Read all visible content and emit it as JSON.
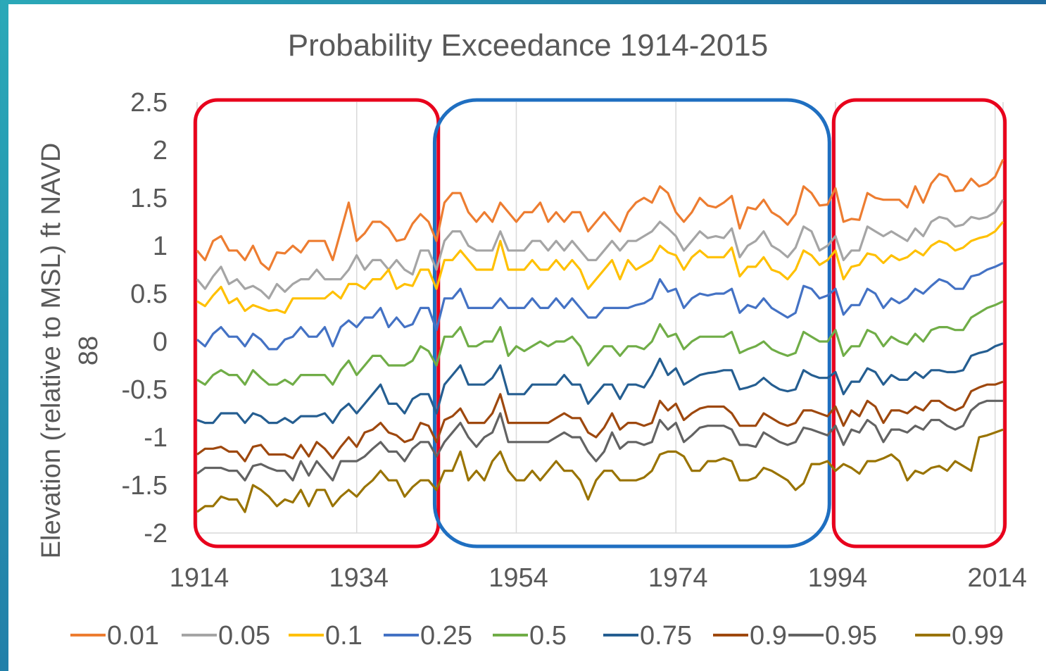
{
  "chart_data": {
    "type": "line",
    "title": "Probability Exceedance 1914-2015",
    "ylabel": "Elevation (relative to MSL) ft NAVD 88",
    "xlabel": "",
    "xlim": [
      1914,
      2015
    ],
    "ylim": [
      -2,
      2.5
    ],
    "xticks": [
      "1914",
      "1934",
      "1954",
      "1974",
      "1994",
      "2014"
    ],
    "yticks": [
      "2.5",
      "2",
      "1.5",
      "1",
      "0.5",
      "0",
      "-0.5",
      "-1",
      "-1.5",
      "-2"
    ],
    "grid": "vertical",
    "legend": "bottom",
    "x": [
      1914,
      1915,
      1916,
      1917,
      1918,
      1919,
      1920,
      1921,
      1922,
      1923,
      1924,
      1925,
      1926,
      1927,
      1928,
      1929,
      1930,
      1931,
      1932,
      1933,
      1934,
      1935,
      1936,
      1937,
      1938,
      1939,
      1940,
      1941,
      1942,
      1943,
      1944,
      1945,
      1946,
      1947,
      1948,
      1949,
      1950,
      1951,
      1952,
      1953,
      1954,
      1955,
      1956,
      1957,
      1958,
      1959,
      1960,
      1961,
      1962,
      1963,
      1964,
      1965,
      1966,
      1967,
      1968,
      1969,
      1970,
      1971,
      1972,
      1973,
      1974,
      1975,
      1976,
      1977,
      1978,
      1979,
      1980,
      1981,
      1982,
      1983,
      1984,
      1985,
      1986,
      1987,
      1988,
      1989,
      1990,
      1991,
      1992,
      1993,
      1994,
      1995,
      1996,
      1997,
      1998,
      1999,
      2000,
      2001,
      2002,
      2003,
      2004,
      2005,
      2006,
      2007,
      2008,
      2009,
      2010,
      2011,
      2012,
      2013,
      2014,
      2015
    ],
    "series": [
      {
        "name": "0.01",
        "color": "#ed7d31",
        "values": [
          0.95,
          0.85,
          1.05,
          1.1,
          0.95,
          0.95,
          0.85,
          1.0,
          0.82,
          0.75,
          0.93,
          0.92,
          1.0,
          0.93,
          1.05,
          1.05,
          1.05,
          0.85,
          1.15,
          1.45,
          1.05,
          1.13,
          1.25,
          1.25,
          1.18,
          1.05,
          1.07,
          1.23,
          1.33,
          1.25,
          1.05,
          1.45,
          1.55,
          1.55,
          1.35,
          1.25,
          1.35,
          1.25,
          1.45,
          1.35,
          1.25,
          1.35,
          1.35,
          1.45,
          1.25,
          1.35,
          1.25,
          1.35,
          1.35,
          1.15,
          1.25,
          1.35,
          1.25,
          1.15,
          1.35,
          1.45,
          1.5,
          1.45,
          1.62,
          1.55,
          1.35,
          1.25,
          1.35,
          1.5,
          1.42,
          1.4,
          1.45,
          1.52,
          1.18,
          1.4,
          1.38,
          1.48,
          1.35,
          1.3,
          1.22,
          1.33,
          1.62,
          1.55,
          1.42,
          1.43,
          1.6,
          1.25,
          1.28,
          1.27,
          1.55,
          1.5,
          1.48,
          1.48,
          1.48,
          1.4,
          1.62,
          1.45,
          1.65,
          1.75,
          1.72,
          1.57,
          1.58,
          1.7,
          1.62,
          1.65,
          1.72,
          1.9
        ]
      },
      {
        "name": "0.05",
        "color": "#a5a5a5",
        "values": [
          0.65,
          0.55,
          0.68,
          0.78,
          0.6,
          0.65,
          0.55,
          0.58,
          0.53,
          0.45,
          0.6,
          0.52,
          0.6,
          0.65,
          0.65,
          0.75,
          0.65,
          0.65,
          0.65,
          0.75,
          0.9,
          0.75,
          0.85,
          0.85,
          0.75,
          0.85,
          0.75,
          0.7,
          0.95,
          0.95,
          0.75,
          1.05,
          1.15,
          1.15,
          1.0,
          0.95,
          0.95,
          0.95,
          1.15,
          0.95,
          0.95,
          0.95,
          1.05,
          1.05,
          0.95,
          1.05,
          0.95,
          1.05,
          0.95,
          0.85,
          0.85,
          0.95,
          1.05,
          0.95,
          1.05,
          1.05,
          1.1,
          1.15,
          1.25,
          1.18,
          1.1,
          0.95,
          1.05,
          1.15,
          1.08,
          1.1,
          1.08,
          1.18,
          0.88,
          1.0,
          1.05,
          1.15,
          1.0,
          0.95,
          0.88,
          0.98,
          1.2,
          1.15,
          0.95,
          1.0,
          1.1,
          0.85,
          0.95,
          0.95,
          1.2,
          1.15,
          1.1,
          1.15,
          1.1,
          1.05,
          1.18,
          1.1,
          1.25,
          1.3,
          1.28,
          1.2,
          1.22,
          1.3,
          1.28,
          1.3,
          1.35,
          1.48
        ]
      },
      {
        "name": "0.1",
        "color": "#ffc000",
        "values": [
          0.42,
          0.37,
          0.48,
          0.57,
          0.4,
          0.45,
          0.32,
          0.38,
          0.35,
          0.32,
          0.33,
          0.3,
          0.45,
          0.45,
          0.45,
          0.45,
          0.45,
          0.52,
          0.45,
          0.6,
          0.6,
          0.55,
          0.65,
          0.65,
          0.75,
          0.55,
          0.6,
          0.58,
          0.75,
          0.75,
          0.55,
          0.85,
          0.85,
          0.95,
          0.85,
          0.75,
          0.75,
          0.75,
          1.05,
          0.75,
          0.75,
          0.75,
          0.85,
          0.75,
          0.75,
          0.85,
          0.75,
          0.85,
          0.75,
          0.55,
          0.65,
          0.75,
          0.85,
          0.65,
          0.85,
          0.75,
          0.8,
          0.85,
          1.0,
          0.93,
          0.9,
          0.75,
          0.88,
          0.95,
          0.88,
          0.88,
          0.88,
          0.98,
          0.68,
          0.78,
          0.78,
          0.88,
          0.75,
          0.72,
          0.65,
          0.75,
          0.95,
          0.9,
          0.8,
          0.85,
          0.95,
          0.65,
          0.78,
          0.8,
          0.92,
          0.9,
          0.82,
          0.9,
          0.85,
          0.88,
          0.95,
          0.9,
          1.0,
          1.05,
          1.02,
          0.95,
          0.98,
          1.05,
          1.08,
          1.1,
          1.15,
          1.25
        ]
      },
      {
        "name": "0.25",
        "color": "#4472c4",
        "values": [
          0.02,
          -0.05,
          0.08,
          0.15,
          0.05,
          0.05,
          -0.05,
          0.08,
          0.02,
          -0.08,
          -0.08,
          0.02,
          0.05,
          0.15,
          0.05,
          0.05,
          0.15,
          -0.05,
          0.15,
          0.22,
          0.15,
          0.25,
          0.25,
          0.35,
          0.15,
          0.25,
          0.15,
          0.18,
          0.35,
          0.35,
          0.12,
          0.45,
          0.45,
          0.55,
          0.35,
          0.35,
          0.35,
          0.35,
          0.45,
          0.35,
          0.35,
          0.35,
          0.45,
          0.35,
          0.35,
          0.45,
          0.35,
          0.45,
          0.35,
          0.25,
          0.25,
          0.35,
          0.35,
          0.35,
          0.35,
          0.38,
          0.4,
          0.45,
          0.65,
          0.52,
          0.55,
          0.35,
          0.45,
          0.5,
          0.48,
          0.5,
          0.5,
          0.55,
          0.3,
          0.38,
          0.35,
          0.45,
          0.35,
          0.3,
          0.25,
          0.3,
          0.58,
          0.55,
          0.45,
          0.48,
          0.55,
          0.28,
          0.38,
          0.38,
          0.55,
          0.5,
          0.35,
          0.45,
          0.4,
          0.45,
          0.55,
          0.5,
          0.58,
          0.65,
          0.62,
          0.55,
          0.55,
          0.68,
          0.7,
          0.75,
          0.78,
          0.82
        ]
      },
      {
        "name": "0.5",
        "color": "#70ad47",
        "values": [
          -0.4,
          -0.45,
          -0.35,
          -0.3,
          -0.35,
          -0.35,
          -0.45,
          -0.3,
          -0.38,
          -0.45,
          -0.45,
          -0.4,
          -0.45,
          -0.35,
          -0.35,
          -0.35,
          -0.35,
          -0.45,
          -0.3,
          -0.2,
          -0.35,
          -0.25,
          -0.15,
          -0.15,
          -0.25,
          -0.25,
          -0.25,
          -0.2,
          -0.05,
          -0.1,
          -0.25,
          0.05,
          0.05,
          0.15,
          -0.05,
          -0.05,
          0.0,
          0.0,
          0.15,
          -0.15,
          -0.05,
          -0.1,
          -0.05,
          0.0,
          -0.05,
          0.0,
          0.0,
          0.05,
          -0.05,
          -0.25,
          -0.15,
          -0.05,
          -0.05,
          -0.15,
          -0.05,
          -0.05,
          -0.08,
          0.0,
          0.18,
          0.05,
          0.08,
          -0.08,
          0.0,
          0.05,
          0.05,
          0.05,
          0.05,
          0.1,
          -0.12,
          -0.08,
          -0.05,
          0.0,
          -0.08,
          -0.12,
          -0.15,
          -0.12,
          0.1,
          0.05,
          0.0,
          0.0,
          0.12,
          -0.15,
          -0.05,
          -0.05,
          0.12,
          0.08,
          -0.05,
          0.05,
          0.0,
          -0.03,
          0.08,
          0.0,
          0.12,
          0.15,
          0.15,
          0.12,
          0.12,
          0.25,
          0.3,
          0.35,
          0.38,
          0.42
        ]
      },
      {
        "name": "0.75",
        "color": "#255e91",
        "values": [
          -0.82,
          -0.85,
          -0.85,
          -0.75,
          -0.75,
          -0.75,
          -0.85,
          -0.75,
          -0.78,
          -0.85,
          -0.85,
          -0.8,
          -0.85,
          -0.78,
          -0.78,
          -0.78,
          -0.75,
          -0.85,
          -0.72,
          -0.65,
          -0.75,
          -0.65,
          -0.55,
          -0.45,
          -0.65,
          -0.65,
          -0.75,
          -0.6,
          -0.55,
          -0.55,
          -0.75,
          -0.45,
          -0.35,
          -0.25,
          -0.45,
          -0.45,
          -0.45,
          -0.38,
          -0.25,
          -0.55,
          -0.55,
          -0.55,
          -0.45,
          -0.45,
          -0.45,
          -0.45,
          -0.35,
          -0.45,
          -0.45,
          -0.65,
          -0.55,
          -0.45,
          -0.45,
          -0.6,
          -0.45,
          -0.45,
          -0.48,
          -0.35,
          -0.18,
          -0.35,
          -0.28,
          -0.45,
          -0.4,
          -0.35,
          -0.33,
          -0.32,
          -0.3,
          -0.3,
          -0.5,
          -0.48,
          -0.45,
          -0.38,
          -0.45,
          -0.5,
          -0.52,
          -0.5,
          -0.3,
          -0.35,
          -0.38,
          -0.38,
          -0.32,
          -0.55,
          -0.42,
          -0.42,
          -0.28,
          -0.32,
          -0.45,
          -0.35,
          -0.4,
          -0.4,
          -0.32,
          -0.38,
          -0.3,
          -0.3,
          -0.32,
          -0.32,
          -0.3,
          -0.15,
          -0.12,
          -0.1,
          -0.05,
          -0.02
        ]
      },
      {
        "name": "0.9",
        "color": "#9e480e",
        "values": [
          -1.18,
          -1.12,
          -1.12,
          -1.1,
          -1.15,
          -1.15,
          -1.25,
          -1.1,
          -1.08,
          -1.18,
          -1.18,
          -1.18,
          -1.22,
          -1.08,
          -1.2,
          -1.05,
          -1.12,
          -1.22,
          -1.1,
          -1.0,
          -1.1,
          -0.95,
          -0.92,
          -0.85,
          -0.95,
          -0.98,
          -1.05,
          -1.02,
          -0.85,
          -0.88,
          -1.05,
          -0.82,
          -0.78,
          -0.7,
          -0.85,
          -0.85,
          -0.85,
          -0.75,
          -0.55,
          -0.85,
          -0.85,
          -0.85,
          -0.85,
          -0.85,
          -0.85,
          -0.8,
          -0.75,
          -0.8,
          -0.8,
          -0.95,
          -1.0,
          -0.9,
          -0.75,
          -0.92,
          -0.85,
          -0.85,
          -0.88,
          -0.85,
          -0.62,
          -0.72,
          -0.65,
          -0.82,
          -0.75,
          -0.7,
          -0.68,
          -0.68,
          -0.68,
          -0.75,
          -0.88,
          -0.88,
          -0.88,
          -0.75,
          -0.8,
          -0.85,
          -0.88,
          -0.85,
          -0.72,
          -0.72,
          -0.75,
          -0.78,
          -0.68,
          -0.88,
          -0.72,
          -0.78,
          -0.62,
          -0.68,
          -0.85,
          -0.72,
          -0.72,
          -0.75,
          -0.68,
          -0.72,
          -0.62,
          -0.62,
          -0.68,
          -0.72,
          -0.68,
          -0.52,
          -0.48,
          -0.45,
          -0.45,
          -0.42
        ]
      },
      {
        "name": "0.95",
        "color": "#636363",
        "values": [
          -1.38,
          -1.32,
          -1.32,
          -1.32,
          -1.35,
          -1.35,
          -1.45,
          -1.3,
          -1.28,
          -1.32,
          -1.35,
          -1.35,
          -1.45,
          -1.25,
          -1.4,
          -1.25,
          -1.35,
          -1.45,
          -1.25,
          -1.25,
          -1.25,
          -1.2,
          -1.12,
          -1.05,
          -1.15,
          -1.15,
          -1.25,
          -1.12,
          -1.05,
          -1.05,
          -1.2,
          -1.05,
          -0.95,
          -0.85,
          -1.0,
          -1.1,
          -1.0,
          -0.95,
          -0.75,
          -1.05,
          -1.05,
          -1.05,
          -1.05,
          -1.05,
          -1.05,
          -1.0,
          -0.95,
          -1.0,
          -1.0,
          -1.15,
          -1.25,
          -1.15,
          -0.95,
          -1.12,
          -1.05,
          -1.05,
          -1.08,
          -1.05,
          -0.82,
          -0.92,
          -0.85,
          -1.05,
          -0.98,
          -0.9,
          -0.88,
          -0.88,
          -0.88,
          -0.92,
          -1.08,
          -1.08,
          -1.1,
          -0.95,
          -1.0,
          -1.05,
          -1.08,
          -1.05,
          -0.9,
          -0.92,
          -0.95,
          -0.98,
          -0.88,
          -1.08,
          -0.92,
          -0.95,
          -0.82,
          -0.88,
          -1.05,
          -0.92,
          -0.92,
          -0.95,
          -0.88,
          -0.92,
          -0.82,
          -0.82,
          -0.88,
          -0.92,
          -0.88,
          -0.72,
          -0.65,
          -0.62,
          -0.62,
          -0.62
        ]
      },
      {
        "name": "0.99",
        "color": "#997300",
        "values": [
          -1.78,
          -1.72,
          -1.72,
          -1.62,
          -1.65,
          -1.65,
          -1.78,
          -1.5,
          -1.55,
          -1.62,
          -1.72,
          -1.65,
          -1.68,
          -1.55,
          -1.72,
          -1.55,
          -1.55,
          -1.72,
          -1.62,
          -1.55,
          -1.62,
          -1.52,
          -1.45,
          -1.35,
          -1.45,
          -1.45,
          -1.62,
          -1.52,
          -1.45,
          -1.45,
          -1.55,
          -1.35,
          -1.35,
          -1.15,
          -1.45,
          -1.35,
          -1.45,
          -1.25,
          -1.15,
          -1.35,
          -1.45,
          -1.45,
          -1.35,
          -1.45,
          -1.35,
          -1.25,
          -1.35,
          -1.35,
          -1.45,
          -1.65,
          -1.45,
          -1.35,
          -1.35,
          -1.45,
          -1.45,
          -1.45,
          -1.42,
          -1.35,
          -1.18,
          -1.15,
          -1.15,
          -1.2,
          -1.35,
          -1.35,
          -1.25,
          -1.25,
          -1.22,
          -1.25,
          -1.45,
          -1.45,
          -1.42,
          -1.32,
          -1.35,
          -1.4,
          -1.45,
          -1.55,
          -1.48,
          -1.28,
          -1.28,
          -1.25,
          -1.35,
          -1.28,
          -1.32,
          -1.38,
          -1.25,
          -1.25,
          -1.22,
          -1.18,
          -1.25,
          -1.45,
          -1.35,
          -1.38,
          -1.32,
          -1.3,
          -1.35,
          -1.25,
          -1.3,
          -1.35,
          -1.0,
          -0.98,
          -0.95,
          -0.92
        ]
      }
    ],
    "highlight_boxes": [
      {
        "x_from": 1915,
        "x_to": 1943,
        "color": "#e8001c"
      },
      {
        "x_from": 1945,
        "x_to": 1992,
        "color": "#1f6fc1"
      },
      {
        "x_from": 1995,
        "x_to": 2014,
        "color": "#e8001c"
      }
    ]
  }
}
